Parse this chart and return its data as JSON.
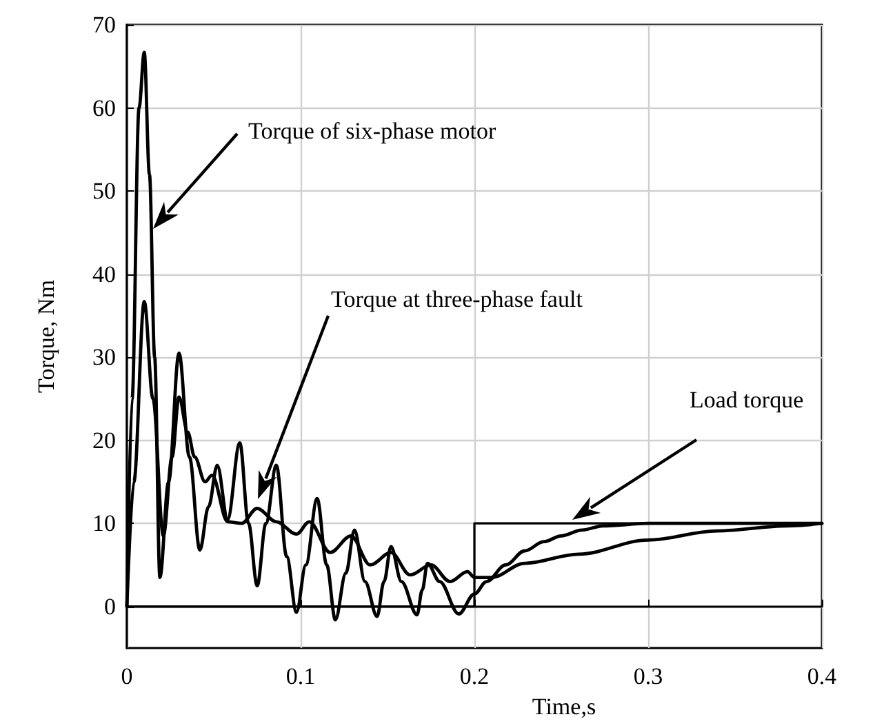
{
  "chart_data": {
    "type": "line",
    "xlabel": "Time,s",
    "ylabel": "Torque, Nm",
    "xlim": [
      0,
      0.4
    ],
    "xticks": [
      0,
      0.1,
      0.2,
      0.3,
      0.4
    ],
    "ylim": [
      -5,
      70
    ],
    "yticks": [
      0,
      10,
      20,
      30,
      40,
      50,
      60,
      70
    ],
    "grid": true,
    "marker": "none",
    "line_style": "solid",
    "series": [
      {
        "color": "#000000",
        "x": [
          0,
          0.003,
          0.007,
          0.01,
          0.013,
          0.016,
          0.019,
          0.024,
          0.03,
          0.036,
          0.042,
          0.047,
          0.052,
          0.058,
          0.065,
          0.07,
          0.075,
          0.08,
          0.086,
          0.092,
          0.0976,
          0.103,
          0.1095,
          0.115,
          0.12,
          0.126,
          0.131,
          0.137,
          0.144,
          0.148,
          0.152,
          0.158,
          0.167,
          0.17,
          0.173,
          0.18,
          0.191,
          0.2,
          0.207,
          0.218,
          0.229,
          0.24,
          0.25,
          0.262,
          0.274,
          0.3,
          0.35,
          0.4
        ],
        "values": [
          0,
          25,
          60,
          66.7,
          52,
          30,
          3.5,
          15,
          30.5,
          18,
          6.8,
          12,
          17,
          10.5,
          19.7,
          10,
          2.5,
          10,
          17,
          6,
          -0.7,
          5,
          13,
          5,
          -1.6,
          4,
          9.2,
          3,
          -1.2,
          3,
          7.2,
          3,
          -1,
          2,
          5.2,
          3,
          -0.9,
          1.5,
          3,
          5,
          6.7,
          7.8,
          8.5,
          9.2,
          9.7,
          10,
          10,
          10
        ]
      },
      {
        "color": "#000000",
        "x": [
          0,
          0.004,
          0.01,
          0.015,
          0.021,
          0.026,
          0.03,
          0.035,
          0.039,
          0.045,
          0.049,
          0.058,
          0.066,
          0.075,
          0.086,
          0.0976,
          0.105,
          0.117,
          0.129,
          0.14,
          0.152,
          0.163,
          0.175,
          0.186,
          0.196,
          0.2,
          0.21,
          0.229,
          0.26,
          0.3,
          0.34,
          0.38,
          0.4
        ],
        "values": [
          0,
          15,
          36.7,
          25,
          8.5,
          18,
          25.2,
          21,
          18,
          15,
          15.8,
          10.2,
          10,
          11.8,
          10.2,
          8.7,
          10.2,
          6.5,
          8.5,
          5,
          6.5,
          3.8,
          5,
          3,
          4.2,
          3.5,
          3.5,
          5.2,
          6.3,
          8,
          9.1,
          9.7,
          10
        ]
      },
      {
        "color": "#000000",
        "x": [
          0,
          0.2,
          0.2,
          0.4
        ],
        "values": [
          0,
          0,
          10,
          10
        ]
      }
    ],
    "annotations": [
      "Torque of six-phase motor",
      "Torque at three-phase fault",
      "Load torque"
    ]
  }
}
